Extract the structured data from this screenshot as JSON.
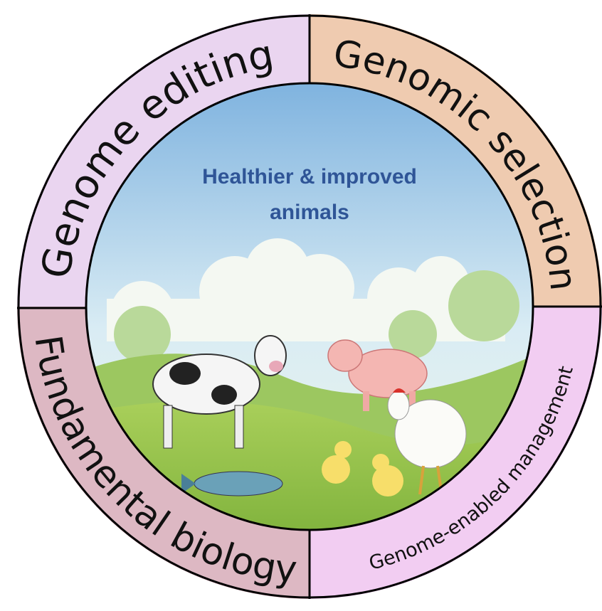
{
  "center": {
    "title_lines": [
      "Healthier & improved",
      "animals"
    ]
  },
  "segments": [
    {
      "label": "Genome editing"
    },
    {
      "label": "Genomic selection"
    },
    {
      "label": "Fundamental biology"
    },
    {
      "label": "Genome-enabled management"
    }
  ]
}
